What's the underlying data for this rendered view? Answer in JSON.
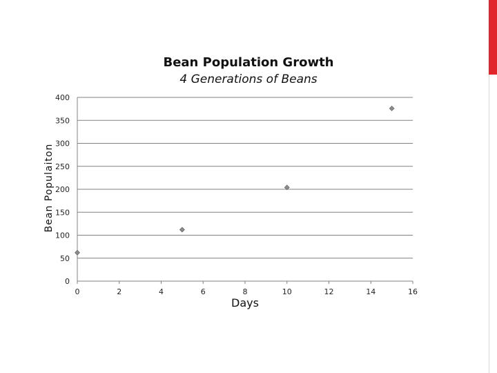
{
  "colors": {
    "accent": "#e0262b",
    "gridline": "#808080",
    "marker": "#8c8c8c"
  },
  "chart_data": {
    "type": "scatter",
    "title": "Bean Population Growth",
    "subtitle": "4 Generations of Beans",
    "xlabel": "Days",
    "ylabel": "Bean Populaiton",
    "xlim": [
      0,
      16
    ],
    "ylim": [
      0,
      400
    ],
    "xticks": [
      0,
      2,
      4,
      6,
      8,
      10,
      12,
      14,
      16
    ],
    "yticks": [
      0,
      50,
      100,
      150,
      200,
      250,
      300,
      350,
      400
    ],
    "grid": "horizontal",
    "legend": "none",
    "series": [
      {
        "marker": "diamond",
        "points": [
          {
            "x": 0,
            "y": 62
          },
          {
            "x": 5,
            "y": 112
          },
          {
            "x": 10,
            "y": 204
          },
          {
            "x": 15,
            "y": 376
          }
        ]
      }
    ]
  }
}
